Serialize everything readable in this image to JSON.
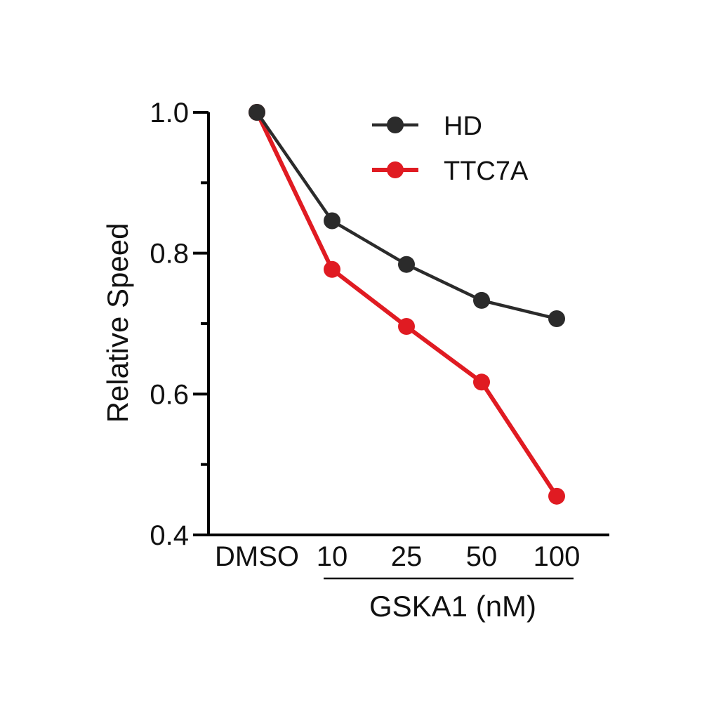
{
  "chart_data": {
    "type": "line",
    "title": "",
    "xlabel": "GSKA1 (nM)",
    "ylabel": "Relative Speed",
    "categories": [
      "DMSO",
      "10",
      "25",
      "50",
      "100"
    ],
    "ylim": [
      0.4,
      1.0
    ],
    "yticks_major": [
      0.4,
      0.6,
      0.8,
      1.0
    ],
    "ytick_labels": [
      "0.4",
      "0.6",
      "0.8",
      "1.0"
    ],
    "yticks_minor": [
      0.5,
      0.7,
      0.9
    ],
    "grid": false,
    "legend_position": "top-right",
    "series": [
      {
        "name": "HD",
        "color": "#2b2b2b",
        "values": [
          1.0,
          0.846,
          0.784,
          0.733,
          0.707
        ]
      },
      {
        "name": "TTC7A",
        "color": "#e01b22",
        "values": [
          1.0,
          0.777,
          0.696,
          0.617,
          0.455
        ]
      }
    ],
    "xlabel_bracket_from": "10",
    "xlabel_bracket_to": "100"
  }
}
